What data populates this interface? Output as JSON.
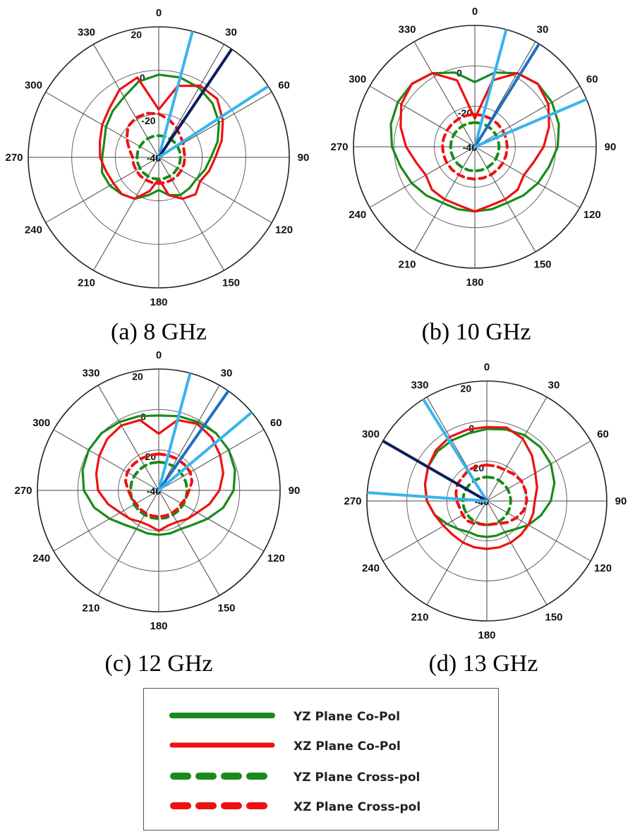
{
  "chart_data": [
    {
      "type": "polar",
      "title": "(a) 8 GHz",
      "angle_ticks": [
        "0",
        "30",
        "60",
        "90",
        "120",
        "150",
        "180",
        "210",
        "240",
        "270",
        "300",
        "330"
      ],
      "radial_labels": [
        "20",
        "0",
        "-20",
        "-40"
      ],
      "radial_range": [
        -40,
        20
      ],
      "series": [
        {
          "name": "YZ Plane Co-Pol",
          "style": "solid",
          "color": "#1a8a1a",
          "gain_db": [
            -2,
            -2,
            -3,
            -5,
            -8,
            -12,
            -16,
            -18,
            -20,
            -20,
            -20,
            -22,
            -25,
            -22,
            -18,
            -16,
            -14,
            -13,
            -14,
            -14,
            -12,
            -10,
            -8,
            -4,
            -2
          ]
        },
        {
          "name": "XZ Plane Co-Pol",
          "style": "solid",
          "color": "#ee1111",
          "gain_db": [
            -18,
            -6,
            -2,
            -2,
            -6,
            -10,
            -14,
            -16,
            -18,
            -16,
            -18,
            -22,
            -30,
            -24,
            -18,
            -16,
            -16,
            -15,
            -13,
            -12,
            -10,
            -8,
            -4,
            -2,
            -18
          ]
        },
        {
          "name": "YZ Plane Cross-pol",
          "style": "dashed",
          "color": "#1a8a1a",
          "gain_db": [
            -30,
            -30,
            -30,
            -30,
            -30,
            -30,
            -30,
            -30,
            -30,
            -30,
            -30,
            -30,
            -30,
            -30,
            -30,
            -30,
            -30,
            -30,
            -30,
            -30,
            -30,
            -30,
            -30,
            -30,
            -30
          ]
        },
        {
          "name": "XZ Plane Cross-pol",
          "style": "dashed",
          "color": "#ee1111",
          "gain_db": [
            -20,
            -22,
            -24,
            -26,
            -27,
            -28,
            -28,
            -28,
            -28,
            -28,
            -28,
            -28,
            -28,
            -28,
            -28,
            -28,
            -28,
            -28,
            -28,
            -26,
            -23,
            -20,
            -19,
            -19,
            -20
          ]
        }
      ],
      "reference_lines_deg": [
        {
          "angle": 15,
          "color": "#38b4ec"
        },
        {
          "angle": 34,
          "color": "#0b1f5c"
        },
        {
          "angle": 57,
          "color": "#38b4ec"
        }
      ]
    },
    {
      "type": "polar",
      "title": "(b) 10 GHz",
      "angle_ticks": [
        "0",
        "30",
        "60",
        "90",
        "120",
        "150",
        "180",
        "210",
        "240",
        "270",
        "300",
        "330"
      ],
      "radial_labels": [
        "0",
        "-20",
        "-40"
      ],
      "radial_range": [
        -40,
        20
      ],
      "series": [
        {
          "name": "YZ Plane Co-Pol",
          "style": "solid",
          "color": "#1a8a1a",
          "gain_db": [
            -8,
            -2,
            2,
            4,
            4,
            3,
            1,
            -2,
            -4,
            -6,
            -8,
            -8,
            -8,
            -8,
            -8,
            -6,
            -4,
            -2,
            1,
            3,
            4,
            4,
            2,
            -2,
            -8
          ]
        },
        {
          "name": "XZ Plane Co-Pol",
          "style": "solid",
          "color": "#ee1111",
          "gain_db": [
            -26,
            -6,
            2,
            4,
            2,
            -2,
            -6,
            -10,
            -12,
            -10,
            -10,
            -10,
            -8,
            -10,
            -10,
            -10,
            -12,
            -10,
            -6,
            -2,
            2,
            4,
            2,
            -6,
            -26
          ]
        },
        {
          "name": "YZ Plane Cross-pol",
          "style": "dashed",
          "color": "#1a8a1a",
          "gain_db": [
            -28,
            -28,
            -28,
            -28,
            -28,
            -28,
            -28,
            -28,
            -28,
            -28,
            -28,
            -28,
            -28,
            -28,
            -28,
            -28,
            -28,
            -28,
            -28,
            -28,
            -28,
            -28,
            -28,
            -28,
            -28
          ]
        },
        {
          "name": "XZ Plane Cross-pol",
          "style": "dashed",
          "color": "#ee1111",
          "gain_db": [
            -24,
            -24,
            -24,
            -24,
            -24,
            -24,
            -24,
            -24,
            -24,
            -24,
            -24,
            -24,
            -24,
            -24,
            -24,
            -24,
            -24,
            -24,
            -24,
            -24,
            -24,
            -24,
            -24,
            -24,
            -24
          ]
        }
      ],
      "reference_lines_deg": [
        {
          "angle": 15,
          "color": "#38b4ec"
        },
        {
          "angle": 32,
          "color": "#1f6fbf"
        },
        {
          "angle": 67,
          "color": "#38b4ec"
        }
      ]
    },
    {
      "type": "polar",
      "title": "(c) 12 GHz",
      "angle_ticks": [
        "0",
        "30",
        "60",
        "90",
        "120",
        "150",
        "180",
        "210",
        "240",
        "270",
        "300",
        "330"
      ],
      "radial_labels": [
        "20",
        "0",
        "-20",
        "-40"
      ],
      "radial_range": [
        -40,
        20
      ],
      "series": [
        {
          "name": "YZ Plane Co-Pol",
          "style": "solid",
          "color": "#1a8a1a",
          "gain_db": [
            -3,
            -2,
            -1,
            0,
            0,
            -1,
            -3,
            -7,
            -12,
            -16,
            -18,
            -18,
            -18,
            -18,
            -18,
            -16,
            -12,
            -7,
            -3,
            -1,
            0,
            0,
            -1,
            -2,
            -3
          ]
        },
        {
          "name": "XZ Plane Co-Pol",
          "style": "solid",
          "color": "#ee1111",
          "gain_db": [
            -12,
            -4,
            -2,
            -3,
            -5,
            -7,
            -10,
            -14,
            -18,
            -20,
            -22,
            -22,
            -20,
            -22,
            -22,
            -20,
            -18,
            -14,
            -10,
            -8,
            -6,
            -4,
            -3,
            -4,
            -12
          ]
        },
        {
          "name": "YZ Plane Cross-pol",
          "style": "dashed",
          "color": "#1a8a1a",
          "gain_db": [
            -26,
            -26,
            -26,
            -26,
            -26,
            -26,
            -26,
            -26,
            -26,
            -26,
            -26,
            -26,
            -26,
            -26,
            -26,
            -26,
            -26,
            -26,
            -26,
            -26,
            -26,
            -26,
            -26,
            -26,
            -26
          ]
        },
        {
          "name": "XZ Plane Cross-pol",
          "style": "dashed",
          "color": "#ee1111",
          "gain_db": [
            -22,
            -22,
            -22,
            -22,
            -22,
            -23,
            -25,
            -26,
            -27,
            -27,
            -27,
            -27,
            -27,
            -27,
            -27,
            -27,
            -27,
            -26,
            -25,
            -23,
            -22,
            -22,
            -22,
            -22,
            -22
          ]
        }
      ],
      "reference_lines_deg": [
        {
          "angle": 15,
          "color": "#38b4ec"
        },
        {
          "angle": 35,
          "color": "#1f6fbf"
        },
        {
          "angle": 50,
          "color": "#38b4ec"
        }
      ]
    },
    {
      "type": "polar",
      "title": "(d) 13 GHz",
      "angle_ticks": [
        "0",
        "30",
        "60",
        "90",
        "120",
        "150",
        "180",
        "210",
        "240",
        "270",
        "300",
        "330"
      ],
      "radial_labels": [
        "20",
        "0",
        "-20",
        "-40"
      ],
      "radial_range": [
        -40,
        20
      ],
      "series": [
        {
          "name": "YZ Plane Co-Pol",
          "style": "solid",
          "color": "#1a8a1a",
          "gain_db": [
            -4,
            -3,
            -2,
            -2,
            -3,
            -5,
            -8,
            -12,
            -16,
            -20,
            -22,
            -22,
            -22,
            -22,
            -22,
            -20,
            -17,
            -13,
            -10,
            -8,
            -6,
            -5,
            -5,
            -5,
            -4
          ]
        },
        {
          "name": "XZ Plane Co-Pol",
          "style": "solid",
          "color": "#ee1111",
          "gain_db": [
            -3,
            -2,
            -4,
            -8,
            -12,
            -14,
            -16,
            -16,
            -16,
            -16,
            -16,
            -16,
            -16,
            -16,
            -16,
            -16,
            -15,
            -13,
            -10,
            -8,
            -6,
            -4,
            -3,
            -3,
            -3
          ]
        },
        {
          "name": "YZ Plane Cross-pol",
          "style": "dashed",
          "color": "#1a8a1a",
          "gain_db": [
            -28,
            -28,
            -28,
            -28,
            -28,
            -28,
            -28,
            -28,
            -28,
            -28,
            -28,
            -28,
            -28,
            -28,
            -28,
            -28,
            -28,
            -28,
            -28,
            -28,
            -28,
            -28,
            -28,
            -28,
            -28
          ]
        },
        {
          "name": "XZ Plane Cross-pol",
          "style": "dashed",
          "color": "#ee1111",
          "gain_db": [
            -22,
            -22,
            -22,
            -21,
            -20,
            -20,
            -20,
            -21,
            -23,
            -25,
            -27,
            -28,
            -28,
            -28,
            -27,
            -26,
            -26,
            -26,
            -25,
            -24,
            -23,
            -23,
            -22,
            -22,
            -22
          ]
        }
      ],
      "reference_lines_deg": [
        {
          "angle": 328,
          "color": "#38b4ec"
        },
        {
          "angle": 300,
          "color": "#0b1f5c"
        },
        {
          "angle": 274,
          "color": "#38b4ec"
        }
      ]
    }
  ],
  "legend": [
    {
      "label": "YZ Plane Co-Pol",
      "color": "#1a8a1a",
      "style": "solid"
    },
    {
      "label": "XZ Plane Co-Pol",
      "color": "#ee1111",
      "style": "solid"
    },
    {
      "label": "YZ Plane Cross-pol",
      "color": "#1a8a1a",
      "style": "dashed"
    },
    {
      "label": "XZ Plane Cross-pol",
      "color": "#ee1111",
      "style": "dashed"
    }
  ]
}
